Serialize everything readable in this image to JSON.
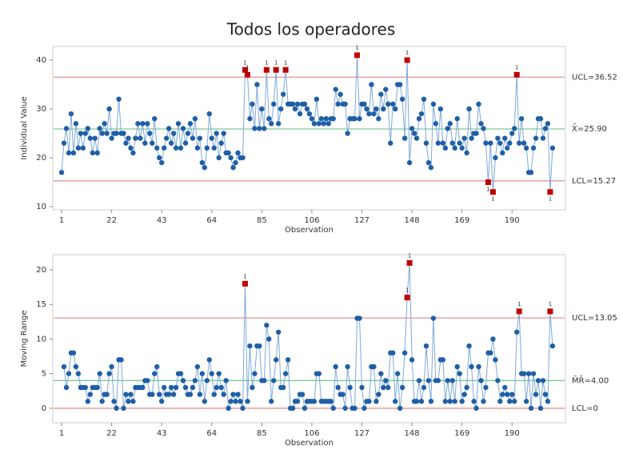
{
  "chart_data": [
    {
      "type": "line",
      "title": "Todos los operadores",
      "xlabel": "Observation",
      "ylabel": "Individual Value",
      "xlim": [
        -2.7,
        212.4
      ],
      "xticks": [
        1,
        22,
        43,
        64,
        85,
        106,
        127,
        148,
        169,
        190
      ],
      "ylim": [
        9.35,
        42.8
      ],
      "yticks": [
        10,
        20,
        30,
        40
      ],
      "color": "#1f5fa6",
      "flag_color": "#c00000",
      "test_label": "1",
      "limits": [
        {
          "name": "ucl",
          "value": 36.52,
          "label": "UCL=36.52",
          "color": "#e08a8a"
        },
        {
          "name": "center",
          "value": 25.9,
          "label": "X̄=25.90",
          "color": "#6fc08f"
        },
        {
          "name": "lcl",
          "value": 15.27,
          "label": "LCL=15.27",
          "color": "#e08a8a"
        }
      ],
      "x": [
        1,
        2,
        3,
        4,
        5,
        6,
        7,
        8,
        9,
        10,
        11,
        12,
        13,
        14,
        15,
        16,
        17,
        18,
        19,
        20,
        21,
        22,
        23,
        24,
        25,
        26,
        27,
        28,
        29,
        30,
        31,
        32,
        33,
        34,
        35,
        36,
        37,
        38,
        39,
        40,
        41,
        42,
        43,
        44,
        45,
        46,
        47,
        48,
        49,
        50,
        51,
        52,
        53,
        54,
        55,
        56,
        57,
        58,
        59,
        60,
        61,
        62,
        63,
        64,
        65,
        66,
        67,
        68,
        69,
        70,
        71,
        72,
        73,
        74,
        75,
        76,
        77,
        78,
        79,
        80,
        81,
        82,
        83,
        84,
        85,
        86,
        87,
        88,
        89,
        90,
        91,
        92,
        93,
        94,
        95,
        96,
        97,
        98,
        99,
        100,
        101,
        102,
        103,
        104,
        105,
        106,
        107,
        108,
        109,
        110,
        111,
        112,
        113,
        114,
        115,
        116,
        117,
        118,
        119,
        120,
        121,
        122,
        123,
        124,
        125,
        126,
        127,
        128,
        129,
        130,
        131,
        132,
        133,
        134,
        135,
        136,
        137,
        138,
        139,
        140,
        141,
        142,
        143,
        144,
        145,
        146,
        147,
        148,
        149,
        150,
        151,
        152,
        153,
        154,
        155,
        156,
        157,
        158,
        159,
        160,
        161,
        162,
        163,
        164,
        165,
        166,
        167,
        168,
        169,
        170,
        171,
        172,
        173,
        174,
        175,
        176,
        177,
        178,
        179,
        180,
        181,
        182,
        183,
        184,
        185,
        186,
        187,
        188,
        189,
        190,
        191,
        192,
        193,
        194,
        195,
        196,
        197,
        198,
        199,
        200,
        201,
        202,
        203,
        204,
        205,
        206,
        207
      ],
      "values": [
        17,
        23,
        26,
        21,
        29,
        21,
        27,
        22,
        25,
        22,
        25,
        26,
        24,
        21,
        24,
        21,
        26,
        25,
        27,
        25,
        30,
        24,
        25,
        25,
        32,
        25,
        25,
        23,
        24,
        22,
        21,
        24,
        27,
        24,
        27,
        23,
        27,
        25,
        23,
        28,
        22,
        20,
        19,
        22,
        24,
        26,
        23,
        25,
        22,
        27,
        22,
        26,
        23,
        25,
        27,
        24,
        28,
        22,
        24,
        19,
        18,
        22,
        29,
        24,
        22,
        25,
        20,
        23,
        25,
        21,
        21,
        20,
        18,
        19,
        21,
        20,
        20,
        38,
        37,
        28,
        31,
        26,
        35,
        26,
        30,
        26,
        38,
        28,
        27,
        31,
        38,
        27,
        30,
        33,
        38,
        31,
        31,
        31,
        30,
        31,
        29,
        31,
        31,
        30,
        29,
        28,
        27,
        32,
        27,
        28,
        27,
        28,
        27,
        28,
        28,
        34,
        31,
        33,
        31,
        31,
        25,
        28,
        28,
        28,
        41,
        28,
        31,
        31,
        30,
        29,
        35,
        29,
        30,
        28,
        33,
        30,
        34,
        31,
        23,
        31,
        30,
        35,
        35,
        32,
        24,
        40,
        19,
        26,
        25,
        24,
        28,
        29,
        32,
        23,
        19,
        18,
        31,
        27,
        23,
        30,
        23,
        22,
        26,
        27,
        23,
        22,
        28,
        23,
        22,
        24,
        21,
        30,
        24,
        25,
        25,
        31,
        27,
        26,
        23,
        15,
        23,
        13,
        20,
        24,
        23,
        21,
        24,
        22,
        23,
        25,
        26,
        37,
        23,
        28,
        23,
        22,
        17,
        17,
        22,
        24,
        28,
        28,
        24,
        26,
        27,
        13,
        22
      ]
    },
    {
      "type": "line",
      "xlabel": "Observation",
      "ylabel": "Moving Range",
      "xlim": [
        -2.7,
        212.4
      ],
      "xticks": [
        1,
        22,
        43,
        64,
        85,
        106,
        127,
        148,
        169,
        190
      ],
      "ylim": [
        -2.1,
        22.2
      ],
      "yticks": [
        0,
        5,
        10,
        15,
        20
      ],
      "color": "#1f5fa6",
      "flag_color": "#c00000",
      "test_label": "1",
      "limits": [
        {
          "name": "ucl",
          "value": 13.05,
          "label": "UCL=13.05",
          "color": "#e08a8a"
        },
        {
          "name": "center",
          "value": 4.0,
          "label": "M̄R̄=4.00",
          "color": "#6fc08f"
        },
        {
          "name": "lcl",
          "value": 0,
          "label": "LCL=0",
          "color": "#e08a8a"
        }
      ],
      "x": [
        1,
        2,
        3,
        4,
        5,
        6,
        7,
        8,
        9,
        10,
        11,
        12,
        13,
        14,
        15,
        16,
        17,
        18,
        19,
        20,
        21,
        22,
        23,
        24,
        25,
        26,
        27,
        28,
        29,
        30,
        31,
        32,
        33,
        34,
        35,
        36,
        37,
        38,
        39,
        40,
        41,
        42,
        43,
        44,
        45,
        46,
        47,
        48,
        49,
        50,
        51,
        52,
        53,
        54,
        55,
        56,
        57,
        58,
        59,
        60,
        61,
        62,
        63,
        64,
        65,
        66,
        67,
        68,
        69,
        70,
        71,
        72,
        73,
        74,
        75,
        76,
        77,
        78,
        79,
        80,
        81,
        82,
        83,
        84,
        85,
        86,
        87,
        88,
        89,
        90,
        91,
        92,
        93,
        94,
        95,
        96,
        97,
        98,
        99,
        100,
        101,
        102,
        103,
        104,
        105,
        106,
        107,
        108,
        109,
        110,
        111,
        112,
        113,
        114,
        115,
        116,
        117,
        118,
        119,
        120,
        121,
        122,
        123,
        124,
        125,
        126,
        127,
        128,
        129,
        130,
        131,
        132,
        133,
        134,
        135,
        136,
        137,
        138,
        139,
        140,
        141,
        142,
        143,
        144,
        145,
        146,
        147,
        148,
        149,
        150,
        151,
        152,
        153,
        154,
        155,
        156,
        157,
        158,
        159,
        160,
        161,
        162,
        163,
        164,
        165,
        166,
        167,
        168,
        169,
        170,
        171,
        172,
        173,
        174,
        175,
        176,
        177,
        178,
        179,
        180,
        181,
        182,
        183,
        184,
        185,
        186,
        187,
        188,
        189,
        190,
        191,
        192,
        193,
        194,
        195,
        196,
        197,
        198,
        199,
        200,
        201,
        202,
        203,
        204,
        205,
        206,
        207
      ],
      "values": [
        null,
        6,
        3,
        5,
        8,
        8,
        6,
        5,
        3,
        3,
        3,
        1,
        2,
        3,
        3,
        3,
        5,
        1,
        2,
        2,
        5,
        6,
        1,
        0,
        7,
        7,
        0,
        2,
        1,
        2,
        1,
        3,
        3,
        3,
        3,
        4,
        4,
        2,
        2,
        5,
        6,
        2,
        1,
        3,
        2,
        2,
        3,
        2,
        3,
        5,
        5,
        4,
        3,
        2,
        2,
        3,
        4,
        6,
        2,
        5,
        1,
        4,
        7,
        5,
        2,
        3,
        5,
        3,
        2,
        4,
        0,
        1,
        2,
        1,
        2,
        1,
        0,
        18,
        1,
        9,
        3,
        5,
        9,
        9,
        4,
        4,
        12,
        10,
        1,
        4,
        7,
        11,
        3,
        3,
        5,
        7,
        0,
        0,
        1,
        1,
        2,
        2,
        0,
        1,
        1,
        1,
        1,
        5,
        5,
        1,
        1,
        1,
        1,
        1,
        0,
        6,
        3,
        2,
        2,
        0,
        6,
        3,
        0,
        0,
        13,
        13,
        3,
        0,
        1,
        1,
        6,
        6,
        1,
        2,
        5,
        3,
        4,
        3,
        8,
        8,
        1,
        5,
        0,
        3,
        8,
        16,
        21,
        7,
        1,
        1,
        4,
        1,
        3,
        9,
        4,
        1,
        13,
        4,
        4,
        7,
        7,
        1,
        4,
        1,
        4,
        1,
        6,
        5,
        1,
        2,
        3,
        9,
        6,
        1,
        0,
        6,
        4,
        1,
        3,
        8,
        8,
        10,
        7,
        4,
        1,
        2,
        3,
        2,
        1,
        2,
        1,
        11,
        14,
        5,
        5,
        1,
        5,
        0,
        5,
        2,
        4,
        0,
        4,
        2,
        1,
        14,
        9
      ]
    }
  ]
}
